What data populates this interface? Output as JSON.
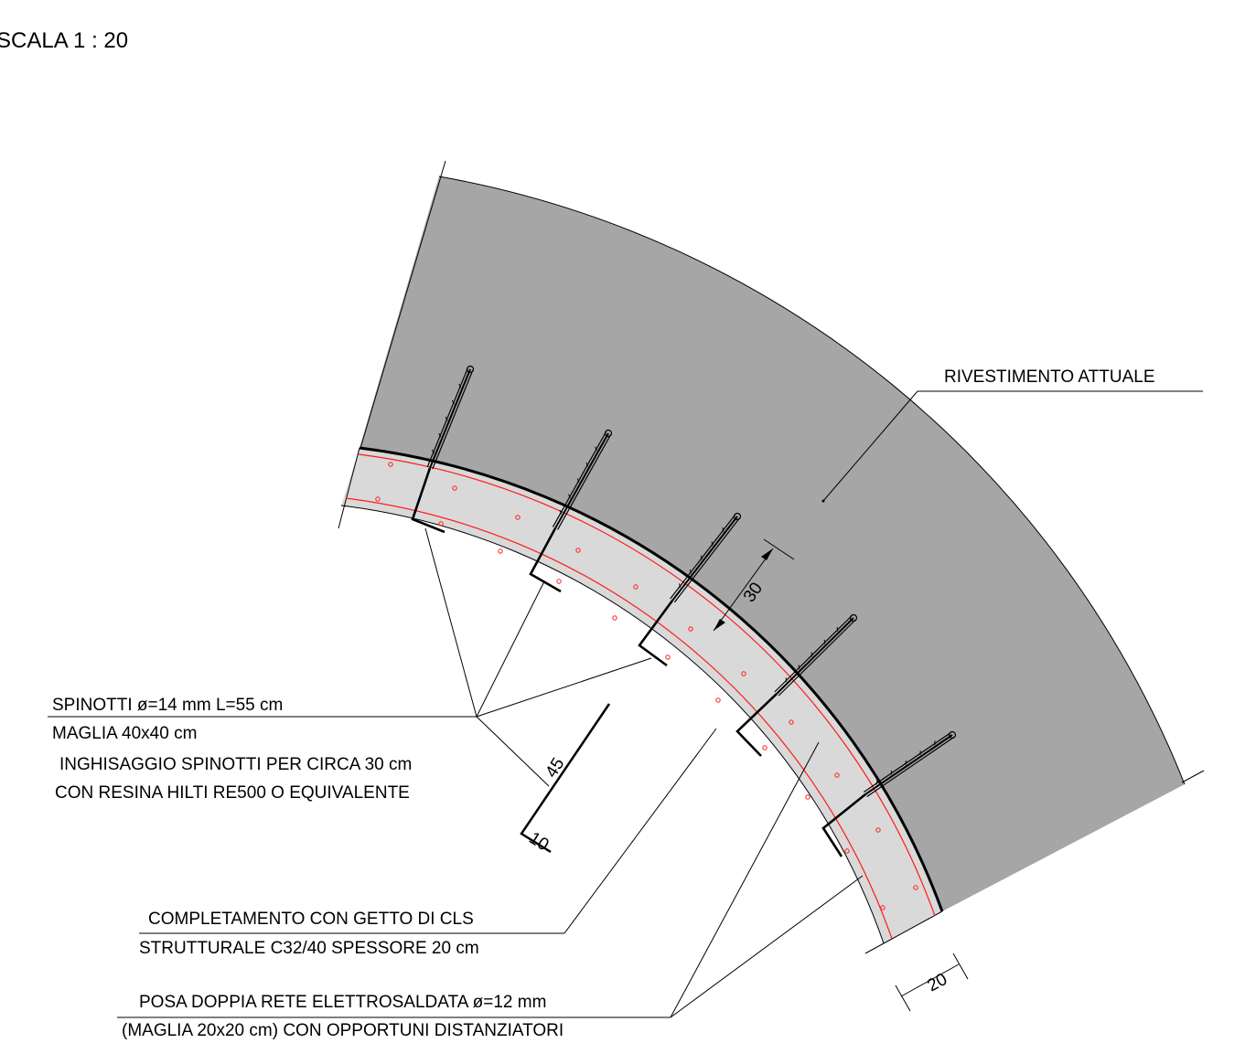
{
  "scale_title": "SCALA 1 : 20",
  "labels": {
    "rivestimento": "RIVESTIMENTO ATTUALE",
    "spinotti_1": "SPINOTTI ø=14 mm L=55 cm",
    "spinotti_2": "MAGLIA 40x40 cm",
    "inghisaggio_1": "INGHISAGGIO SPINOTTI PER CIRCA 30 cm",
    "inghisaggio_2": "CON RESINA HILTI RE500 O EQUIVALENTE",
    "completamento_1": "COMPLETAMENTO CON GETTO DI CLS",
    "completamento_2": "STRUTTURALE C32/40 SPESSORE 20 cm",
    "rete_1": "POSA DOPPIA RETE ELETTROSALDATA ø=12 mm",
    "rete_2": "(MAGLIA 20x20 cm) CON OPPORTUNI DISTANZIATORI"
  },
  "dimensions": {
    "anchor_depth": "30",
    "new_layer": "20",
    "bar_long": "45",
    "bar_hook": "10"
  },
  "colors": {
    "existing_lining": "#a6a6a6",
    "new_layer": "#d9d9d9",
    "reinforcement": "#ff1a1a",
    "lines": "#000000"
  }
}
